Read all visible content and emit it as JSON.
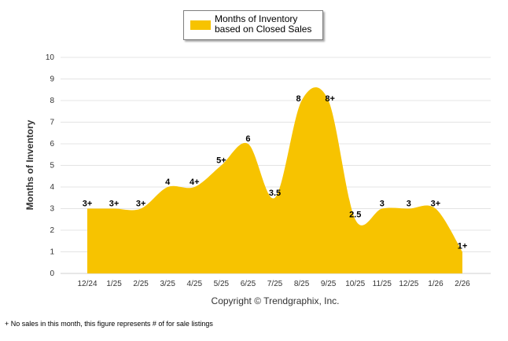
{
  "legend": {
    "label": "Months of Inventory based on Closed Sales"
  },
  "copyright": "Copyright © Trendgraphix, Inc.",
  "footnote": "+  No sales in this month, this figure represents # of for sale listings",
  "chart_data": {
    "type": "area",
    "title": "",
    "xlabel": "",
    "ylabel": "Months of Inventory",
    "ylim": [
      0,
      10
    ],
    "yticks": [
      "0",
      "1",
      "2",
      "3",
      "4",
      "5",
      "6",
      "7",
      "8",
      "9",
      "10"
    ],
    "grid": true,
    "legend_position": "top-center",
    "color": "#F7C300",
    "categories": [
      "12/24",
      "1/25",
      "2/25",
      "3/25",
      "4/25",
      "5/25",
      "6/25",
      "7/25",
      "8/25",
      "9/25",
      "10/25",
      "11/25",
      "12/25",
      "1/26",
      "2/26"
    ],
    "series": [
      {
        "name": "Months of Inventory based on Closed Sales",
        "values": [
          3,
          3,
          3,
          4,
          4,
          5,
          6,
          3.5,
          8,
          8,
          2.5,
          3,
          3,
          3,
          1
        ],
        "labels": [
          "3+",
          "3+",
          "3+",
          "4",
          "4+",
          "5+",
          "6",
          "3.5",
          "8",
          "8+",
          "2.5",
          "3",
          "3",
          "3+",
          "1+"
        ]
      }
    ]
  }
}
